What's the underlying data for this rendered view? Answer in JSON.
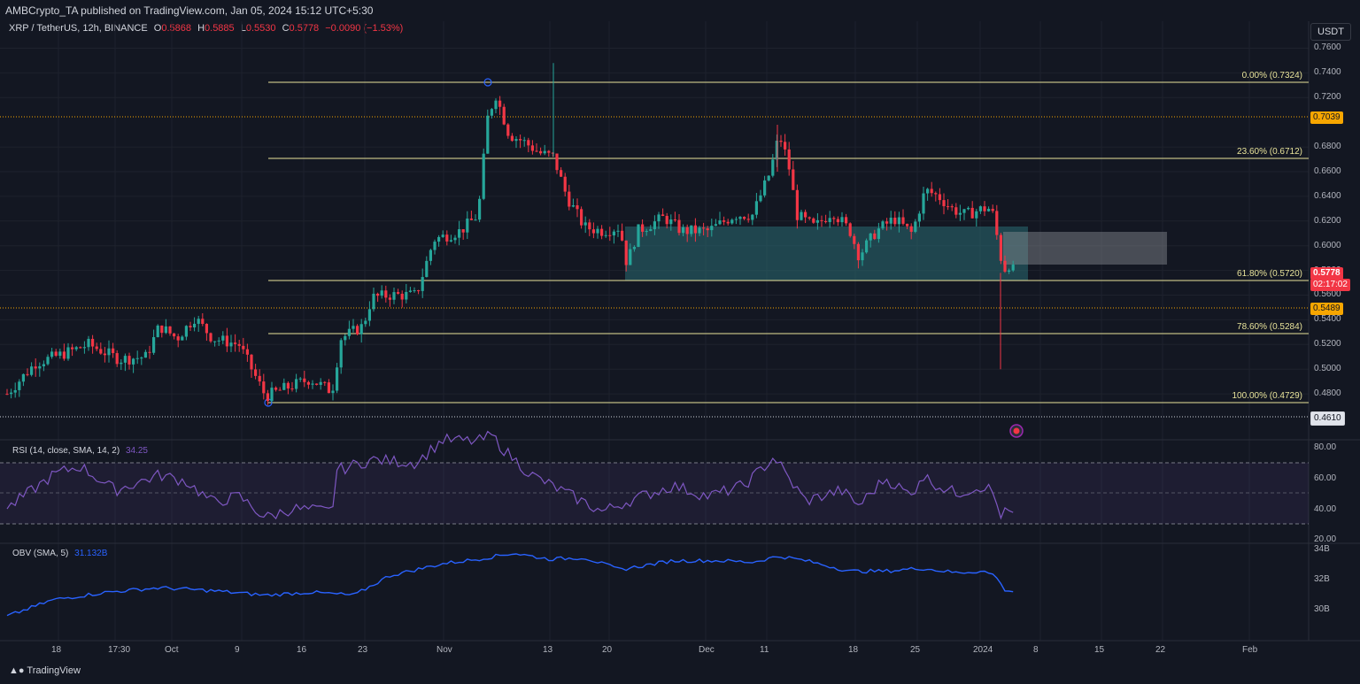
{
  "header": {
    "published": "AMBCrypto_TA published on TradingView.com, Jan 05, 2024 15:12 UTC+5:30"
  },
  "symbol": {
    "title": "XRP / TetherUS, 12h, BINANCE",
    "o_label": "O",
    "o_value": "0.5868",
    "h_label": "H",
    "h_value": "0.5885",
    "l_label": "L",
    "l_value": "0.5530",
    "c_label": "C",
    "c_value": "0.5778",
    "change": "−0.0090 (−1.53%)"
  },
  "currency_button": "USDT",
  "price_axis": {
    "ticks": [
      "0.7600",
      "0.7400",
      "0.7200",
      "0.6800",
      "0.6600",
      "0.6400",
      "0.6200",
      "0.6000",
      "0.5800",
      "0.5600",
      "0.5400",
      "0.5200",
      "0.5000",
      "0.4800"
    ],
    "tags": {
      "upper_level": "0.7039",
      "last_price": "0.5778",
      "countdown": "02:17:02",
      "mid_level": "0.5489",
      "lower_level": "0.4610"
    }
  },
  "fib_labels": {
    "f0": "0.00% (0.7324)",
    "f236": "23.60% (0.6712)",
    "f618": "61.80% (0.5720)",
    "f786": "78.60% (0.5284)",
    "f100": "100.00% (0.4729)"
  },
  "rsi": {
    "legend": "RSI (14, close, SMA, 14, 2)",
    "value": "34.25",
    "ticks": [
      "80.00",
      "60.00",
      "40.00",
      "20.00"
    ]
  },
  "obv": {
    "legend": "OBV (SMA, 5)",
    "value": "31.132B",
    "ticks": [
      "34B",
      "32B",
      "30B"
    ]
  },
  "time_axis": [
    "18",
    "17:30",
    "Oct",
    "9",
    "16",
    "23",
    "Nov",
    "13",
    "20",
    "Dec",
    "11",
    "18",
    "25",
    "2024",
    "8",
    "15",
    "22",
    "Feb"
  ],
  "footer": {
    "brand": "TradingView"
  },
  "colors": {
    "background": "#131722",
    "up": "#26a69a",
    "down": "#f23645",
    "fib_line": "#e8e39a",
    "level_line": "#f7a600",
    "rsi_line": "#7e57c2",
    "obv_line": "#2962ff",
    "zone_fill": "#2a6b72"
  },
  "chart_data": {
    "type": "candlestick",
    "timeframe": "12h",
    "ylim": [
      0.46,
      0.76
    ],
    "key_points": [
      {
        "date": "2023-09-15",
        "price": 0.505
      },
      {
        "date": "2023-10-03",
        "price": 0.535
      },
      {
        "date": "2023-10-12",
        "price": 0.4729
      },
      {
        "date": "2023-10-20",
        "price": 0.49
      },
      {
        "date": "2023-10-25",
        "price": 0.56
      },
      {
        "date": "2023-11-01",
        "price": 0.61
      },
      {
        "date": "2023-11-06",
        "price": 0.7324
      },
      {
        "date": "2023-11-13",
        "price": 0.68
      },
      {
        "date": "2023-11-21",
        "price": 0.6
      },
      {
        "date": "2023-12-04",
        "price": 0.625
      },
      {
        "date": "2023-12-09",
        "price": 0.69
      },
      {
        "date": "2023-12-18",
        "price": 0.61
      },
      {
        "date": "2023-12-27",
        "price": 0.64
      },
      {
        "date": "2024-01-02",
        "price": 0.62
      },
      {
        "date": "2024-01-03",
        "price": 0.57
      },
      {
        "date": "2024-01-05",
        "price": 0.5778
      }
    ],
    "fib_levels": [
      {
        "pct": 0,
        "price": 0.7324
      },
      {
        "pct": 23.6,
        "price": 0.6712
      },
      {
        "pct": 61.8,
        "price": 0.572
      },
      {
        "pct": 78.6,
        "price": 0.5284
      },
      {
        "pct": 100,
        "price": 0.4729
      }
    ],
    "horizontal_levels": [
      0.7039,
      0.5489,
      0.461
    ],
    "zones": [
      {
        "from": 0.572,
        "to": 0.616
      },
      {
        "from": 0.584,
        "to": 0.611
      }
    ],
    "rsi_last": 34.25,
    "obv_last_billions": 31.132
  }
}
